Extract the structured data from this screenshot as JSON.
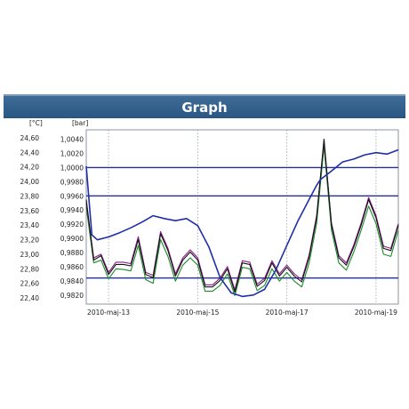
{
  "window": {
    "title": "Graph"
  },
  "colors": {
    "header_bg": "#2c5885",
    "pressure_line": "#1f2fa8",
    "reference_line": "#22309a",
    "temp_black": "#111111",
    "temp_purple": "#8a1a8a",
    "temp_green": "#1d8a2a",
    "grid": "#9aa0a8"
  },
  "chart_data": {
    "type": "line",
    "title": "",
    "left_axis": {
      "unit": "[°C]",
      "ylim": [
        22.4,
        24.6
      ],
      "tick_labels": [
        "24,60",
        "24,40",
        "24,20",
        "24,00",
        "23,80",
        "23,60",
        "23,40",
        "23,20",
        "23,00",
        "22,80",
        "22,60",
        "22,40"
      ]
    },
    "right_axis": {
      "unit": "[bar]",
      "ylim": [
        0.9816,
        1.0042
      ],
      "tick_labels": [
        "1,0040",
        "1,0020",
        "1,0000",
        "0,9980",
        "0,9960",
        "0,9940",
        "0,9920",
        "0,9900",
        "0,9880",
        "0,9860",
        "0,9840",
        "0,9820"
      ]
    },
    "x_axis": {
      "tick_labels": [
        "2010-maj-13",
        "2010-maj-15",
        "2010-maj-17",
        "2010-maj-19"
      ],
      "xlim": [
        "2010-05-12 12:00",
        "2010-05-19 12:00"
      ]
    },
    "reference_lines_bar": [
      1.0,
      0.996,
      0.9844
    ],
    "grid": {
      "vertical": true,
      "style": "dotted"
    },
    "series": [
      {
        "unit": "bar",
        "color": "#1f2fa8",
        "x": [
          "2010-05-12 12:00",
          "2010-05-12 15:00",
          "2010-05-12 18:00",
          "2010-05-13 00:00",
          "2010-05-13 06:00",
          "2010-05-13 12:00",
          "2010-05-13 18:00",
          "2010-05-14 00:00",
          "2010-05-14 06:00",
          "2010-05-14 12:00",
          "2010-05-14 18:00",
          "2010-05-15 00:00",
          "2010-05-15 06:00",
          "2010-05-15 12:00",
          "2010-05-15 18:00",
          "2010-05-16 00:00",
          "2010-05-16 06:00",
          "2010-05-16 12:00",
          "2010-05-16 18:00",
          "2010-05-17 00:00",
          "2010-05-17 06:00",
          "2010-05-17 12:00",
          "2010-05-17 16:00",
          "2010-05-17 18:00",
          "2010-05-18 00:00",
          "2010-05-18 06:00",
          "2010-05-18 12:00",
          "2010-05-18 18:00",
          "2010-05-19 00:00",
          "2010-05-19 06:00",
          "2010-05-19 12:00"
        ],
        "y": [
          1.0002,
          0.9905,
          0.9898,
          0.9902,
          0.9908,
          0.9915,
          0.9923,
          0.9932,
          0.9928,
          0.9925,
          0.9928,
          0.9918,
          0.9888,
          0.9845,
          0.9823,
          0.9818,
          0.982,
          0.9828,
          0.9855,
          0.989,
          0.9925,
          0.9955,
          0.9975,
          0.9983,
          0.9995,
          1.0008,
          1.0012,
          1.0018,
          1.0021,
          1.0019,
          1.0025
        ]
      },
      {
        "unit": "°C",
        "color": "#111111",
        "x": [
          "2010-05-12 12:00",
          "2010-05-12 16:00",
          "2010-05-12 20:00",
          "2010-05-13 00:00",
          "2010-05-13 04:00",
          "2010-05-13 08:00",
          "2010-05-13 12:00",
          "2010-05-13 16:00",
          "2010-05-13 20:00",
          "2010-05-14 00:00",
          "2010-05-14 04:00",
          "2010-05-14 08:00",
          "2010-05-14 12:00",
          "2010-05-14 16:00",
          "2010-05-14 20:00",
          "2010-05-15 00:00",
          "2010-05-15 04:00",
          "2010-05-15 08:00",
          "2010-05-15 12:00",
          "2010-05-15 16:00",
          "2010-05-15 20:00",
          "2010-05-16 00:00",
          "2010-05-16 04:00",
          "2010-05-16 08:00",
          "2010-05-16 12:00",
          "2010-05-16 16:00",
          "2010-05-16 20:00",
          "2010-05-17 00:00",
          "2010-05-17 04:00",
          "2010-05-17 08:00",
          "2010-05-17 12:00",
          "2010-05-17 16:00",
          "2010-05-17 20:00",
          "2010-05-18 00:00",
          "2010-05-18 04:00",
          "2010-05-18 08:00",
          "2010-05-18 12:00",
          "2010-05-18 16:00",
          "2010-05-18 20:00",
          "2010-05-19 00:00",
          "2010-05-19 04:00",
          "2010-05-19 08:00",
          "2010-05-19 12:00"
        ],
        "y": [
          23.75,
          22.92,
          22.98,
          22.72,
          22.86,
          22.86,
          22.84,
          23.2,
          22.72,
          22.68,
          23.28,
          23.05,
          22.7,
          22.92,
          23.03,
          22.92,
          22.55,
          22.55,
          22.64,
          22.8,
          22.48,
          22.88,
          22.86,
          22.56,
          22.64,
          22.88,
          22.7,
          22.82,
          22.7,
          22.62,
          22.96,
          23.5,
          24.58,
          23.4,
          22.95,
          22.85,
          23.1,
          23.4,
          23.75,
          23.5,
          23.08,
          23.05,
          23.4
        ]
      },
      {
        "unit": "°C",
        "color": "#8a1a8a",
        "x": [
          "2010-05-12 12:00",
          "2010-05-12 16:00",
          "2010-05-12 20:00",
          "2010-05-13 00:00",
          "2010-05-13 04:00",
          "2010-05-13 08:00",
          "2010-05-13 12:00",
          "2010-05-13 16:00",
          "2010-05-13 20:00",
          "2010-05-14 00:00",
          "2010-05-14 04:00",
          "2010-05-14 08:00",
          "2010-05-14 12:00",
          "2010-05-14 16:00",
          "2010-05-14 20:00",
          "2010-05-15 00:00",
          "2010-05-15 04:00",
          "2010-05-15 08:00",
          "2010-05-15 12:00",
          "2010-05-15 16:00",
          "2010-05-15 20:00",
          "2010-05-16 00:00",
          "2010-05-16 04:00",
          "2010-05-16 08:00",
          "2010-05-16 12:00",
          "2010-05-16 16:00",
          "2010-05-16 20:00",
          "2010-05-17 00:00",
          "2010-05-17 04:00",
          "2010-05-17 08:00",
          "2010-05-17 12:00",
          "2010-05-17 16:00",
          "2010-05-17 20:00",
          "2010-05-18 00:00",
          "2010-05-18 04:00",
          "2010-05-18 08:00",
          "2010-05-18 12:00",
          "2010-05-18 16:00",
          "2010-05-18 20:00",
          "2010-05-19 00:00",
          "2010-05-19 04:00",
          "2010-05-19 08:00",
          "2010-05-19 12:00"
        ],
        "y": [
          23.7,
          22.95,
          23.0,
          22.75,
          22.89,
          22.89,
          22.87,
          23.24,
          22.75,
          22.71,
          23.31,
          23.08,
          22.73,
          22.95,
          23.06,
          22.95,
          22.58,
          22.58,
          22.67,
          22.83,
          22.51,
          22.91,
          22.89,
          22.59,
          22.67,
          22.91,
          22.73,
          22.85,
          22.73,
          22.65,
          22.99,
          23.53,
          24.55,
          23.43,
          22.98,
          22.88,
          23.13,
          23.43,
          23.78,
          23.53,
          23.11,
          23.08,
          23.42
        ]
      },
      {
        "unit": "°C",
        "color": "#1d8a2a",
        "x": [
          "2010-05-12 12:00",
          "2010-05-12 16:00",
          "2010-05-12 20:00",
          "2010-05-13 00:00",
          "2010-05-13 04:00",
          "2010-05-13 08:00",
          "2010-05-13 12:00",
          "2010-05-13 16:00",
          "2010-05-13 20:00",
          "2010-05-14 00:00",
          "2010-05-14 04:00",
          "2010-05-14 08:00",
          "2010-05-14 12:00",
          "2010-05-14 16:00",
          "2010-05-14 20:00",
          "2010-05-15 00:00",
          "2010-05-15 04:00",
          "2010-05-15 08:00",
          "2010-05-15 12:00",
          "2010-05-15 16:00",
          "2010-05-15 20:00",
          "2010-05-16 00:00",
          "2010-05-16 04:00",
          "2010-05-16 08:00",
          "2010-05-16 12:00",
          "2010-05-16 16:00",
          "2010-05-16 20:00",
          "2010-05-17 00:00",
          "2010-05-17 04:00",
          "2010-05-17 08:00",
          "2010-05-17 12:00",
          "2010-05-17 16:00",
          "2010-05-17 20:00",
          "2010-05-18 00:00",
          "2010-05-18 04:00",
          "2010-05-18 08:00",
          "2010-05-18 12:00",
          "2010-05-18 16:00",
          "2010-05-18 20:00",
          "2010-05-19 00:00",
          "2010-05-19 04:00",
          "2010-05-19 08:00",
          "2010-05-19 12:00"
        ],
        "y": [
          23.65,
          22.88,
          22.92,
          22.66,
          22.8,
          22.79,
          22.77,
          23.12,
          22.65,
          22.6,
          23.2,
          22.97,
          22.63,
          22.85,
          22.95,
          22.85,
          22.49,
          22.49,
          22.57,
          22.73,
          22.43,
          22.82,
          22.8,
          22.5,
          22.57,
          22.8,
          22.63,
          22.75,
          22.63,
          22.55,
          22.88,
          23.42,
          24.48,
          23.33,
          22.88,
          22.78,
          23.03,
          23.33,
          23.66,
          23.42,
          23.0,
          22.97,
          23.33
        ]
      }
    ]
  }
}
